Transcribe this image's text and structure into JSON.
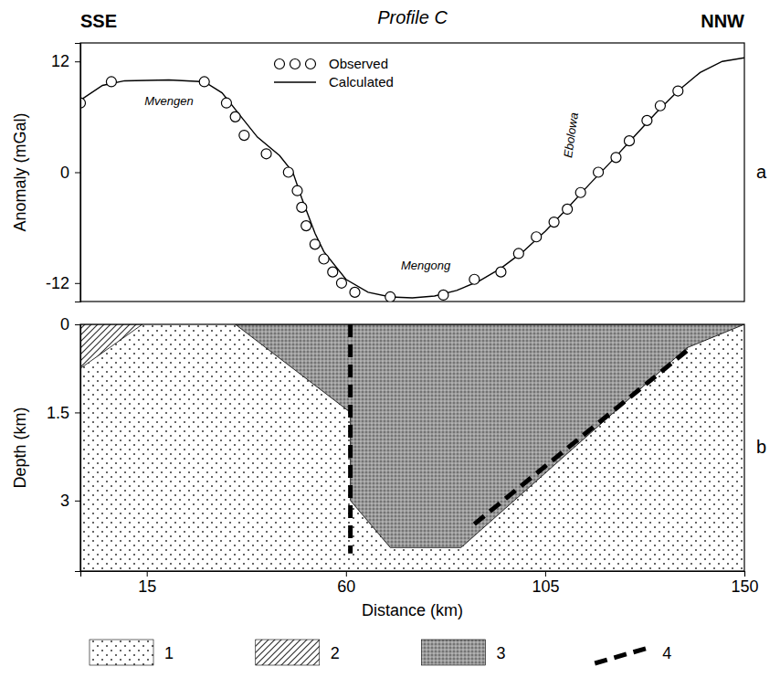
{
  "chart_data": [
    {
      "type": "line",
      "title": "Profile C",
      "panel_label": "a",
      "direction": {
        "left": "SSE",
        "right": "NNW"
      },
      "y_label": "Anomaly (mGal)",
      "xlim": [
        0,
        150
      ],
      "ylim": [
        -14,
        14
      ],
      "yticks": [
        -12,
        0,
        12
      ],
      "tick_labels": "y",
      "legend": "top",
      "series": [
        {
          "name": "Observed",
          "type": "scatter",
          "marker": "circle",
          "color": "#000000",
          "x": [
            0,
            7,
            28,
            33,
            35,
            37,
            42,
            47,
            49,
            50,
            51,
            53,
            55,
            57,
            59,
            62,
            70,
            82,
            89,
            95,
            99,
            103,
            107,
            110,
            113,
            117,
            121,
            124,
            128,
            131,
            135
          ],
          "values": [
            7.5,
            9.8,
            9.8,
            7.5,
            6,
            4,
            2,
            0,
            -2,
            -3.8,
            -5.8,
            -7.8,
            -9.4,
            -10.8,
            -12,
            -13,
            -13.5,
            -13.3,
            -11.6,
            -10.8,
            -8.8,
            -7,
            -5.4,
            -4,
            -2.2,
            0,
            1.6,
            3.4,
            5.6,
            7.2,
            8.8
          ]
        },
        {
          "name": "Calculated",
          "type": "line",
          "line_style": "solid",
          "color": "#000000",
          "x": [
            0,
            5,
            10,
            20,
            28,
            32,
            36,
            40,
            45,
            48,
            50,
            53,
            55,
            60,
            65,
            70,
            75,
            80,
            85,
            90,
            95,
            100,
            105,
            110,
            115,
            120,
            125,
            130,
            135,
            140,
            145,
            150
          ],
          "values": [
            7.8,
            9.4,
            9.9,
            10,
            9.8,
            8.6,
            6.2,
            3.8,
            1.8,
            0,
            -2.8,
            -6.6,
            -8.6,
            -11.6,
            -13,
            -13.5,
            -13.6,
            -13.4,
            -12.8,
            -11.8,
            -10.4,
            -8.6,
            -6.4,
            -3.9,
            -1.3,
            1.2,
            3.8,
            6.4,
            8.8,
            10.8,
            12,
            12.4
          ]
        }
      ],
      "annotations": [
        {
          "text": "Mvengen",
          "x": 20,
          "y": 7.3
        },
        {
          "text": "Mengong",
          "x": 78,
          "y": -10.5
        },
        {
          "text": "Ebolowa",
          "x": 111,
          "y": 1.5
        }
      ]
    },
    {
      "type": "section",
      "panel_label": "b",
      "x_label": "Distance (km)",
      "y_label": "Depth (km)",
      "xlim": [
        0,
        150
      ],
      "ylim": [
        0,
        4.2
      ],
      "xticks": [
        15,
        60,
        105,
        150
      ],
      "yticks": [
        0,
        1.5,
        3
      ],
      "legend": "bottom",
      "series": [
        {
          "name": "1",
          "type": "polygon",
          "color": "#555555",
          "x": [
            0,
            150,
            150,
            0
          ],
          "values": [
            0,
            0,
            4.2,
            4.2
          ]
        },
        {
          "name": "2",
          "type": "polygon",
          "color": "#333333",
          "x": [
            0,
            14,
            0
          ],
          "values": [
            0,
            0,
            0.75
          ]
        },
        {
          "name": "3",
          "type": "polygon",
          "color": "#9a9a9a",
          "x": [
            35,
            150,
            137,
            86,
            70,
            61,
            61
          ],
          "values": [
            0,
            0,
            0.4,
            3.8,
            3.8,
            3.0,
            1.5
          ]
        },
        {
          "name": "4",
          "type": "line",
          "line_style": "dashed",
          "color": "#000000",
          "x": [
            61,
            61,
            null,
            89,
            137
          ],
          "values": [
            0,
            3.9,
            null,
            3.4,
            0.45
          ]
        }
      ]
    }
  ]
}
